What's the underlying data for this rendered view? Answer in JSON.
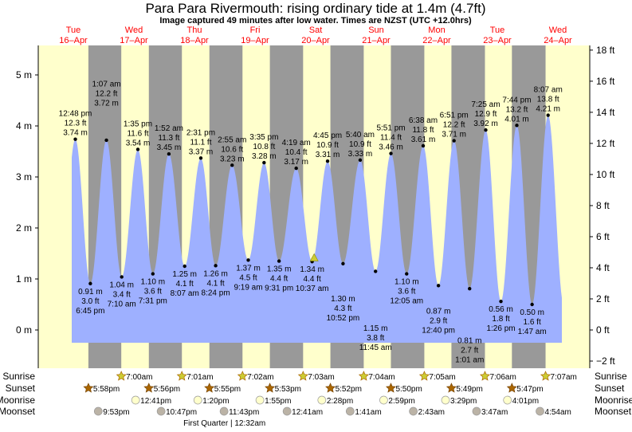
{
  "title": "Para Para Rivermouth: rising  ordinary tide at 1.4m (4.7ft)",
  "subtitle": "Image captured 49 minutes after low water. Times are NZST (UTC +12.0hrs)",
  "colors": {
    "tide": "#9eb0ff",
    "day": "#ffffcc",
    "night": "#999999",
    "day_label": "#ff0000",
    "sunrise": "#cccc33",
    "sunset": "#aa6600",
    "moonrise": "#ffffcc",
    "moonset": "#bbb3a6",
    "marker": "#cccc33"
  },
  "chart_data": {
    "type": "area",
    "title": "Para Para Rivermouth: rising  ordinary tide at 1.4m (4.7ft)",
    "x_unit": "hours since 16-Apr 00:00 NZST",
    "xlim": [
      -8,
      211
    ],
    "ylim_m": [
      -0.75,
      5.6
    ],
    "y_ticks_m": [
      "0 m",
      "1 m",
      "2 m",
      "3 m",
      "4 m",
      "5 m"
    ],
    "y_tick_values_m": [
      0,
      1,
      2,
      3,
      4,
      5
    ],
    "y_ticks_ft": [
      "−2 ft",
      "0 ft",
      "2 ft",
      "4 ft",
      "6 ft",
      "8 ft",
      "10 ft",
      "12 ft",
      "14 ft",
      "16 ft",
      "18 ft"
    ],
    "y_tick_values_ft": [
      -2,
      0,
      2,
      4,
      6,
      8,
      10,
      12,
      14,
      16,
      18
    ],
    "days": [
      {
        "dow": "Tue",
        "date": "16–Apr",
        "t": 12
      },
      {
        "dow": "Wed",
        "date": "17–Apr",
        "t": 36
      },
      {
        "dow": "Thu",
        "date": "18–Apr",
        "t": 60
      },
      {
        "dow": "Fri",
        "date": "19–Apr",
        "t": 84
      },
      {
        "dow": "Sat",
        "date": "20–Apr",
        "t": 108
      },
      {
        "dow": "Sun",
        "date": "21–Apr",
        "t": 132
      },
      {
        "dow": "Mon",
        "date": "22–Apr",
        "t": 156
      },
      {
        "dow": "Tue",
        "date": "23–Apr",
        "t": 180
      },
      {
        "dow": "Wed",
        "date": "24–Apr",
        "t": 204
      }
    ],
    "tides": [
      {
        "type": "high",
        "t": 12.8,
        "time": "12:48 pm",
        "ft": "12.3 ft",
        "m": 3.74,
        "m_label": "3.74 m"
      },
      {
        "type": "low",
        "t": 18.75,
        "time": "6:45 pm",
        "ft": "3.0 ft",
        "m": 0.91,
        "m_label": "0.91 m"
      },
      {
        "type": "high",
        "t": 25.12,
        "time": "1:07 am",
        "ft": "12.2 ft",
        "m": 3.72,
        "m_label": "3.72 m"
      },
      {
        "type": "low",
        "t": 31.17,
        "time": "7:10 am",
        "ft": "3.4 ft",
        "m": 1.04,
        "m_label": "1.04 m"
      },
      {
        "type": "high",
        "t": 37.58,
        "time": "1:35 pm",
        "ft": "11.6 ft",
        "m": 3.54,
        "m_label": "3.54 m"
      },
      {
        "type": "low",
        "t": 43.52,
        "time": "7:31 pm",
        "ft": "3.6 ft",
        "m": 1.1,
        "m_label": "1.10 m"
      },
      {
        "type": "high",
        "t": 49.87,
        "time": "1:52 am",
        "ft": "11.3 ft",
        "m": 3.45,
        "m_label": "3.45 m"
      },
      {
        "type": "low",
        "t": 56.12,
        "time": "8:07 am",
        "ft": "4.1 ft",
        "m": 1.25,
        "m_label": "1.25 m"
      },
      {
        "type": "high",
        "t": 62.52,
        "time": "2:31 pm",
        "ft": "11.1 ft",
        "m": 3.37,
        "m_label": "3.37 m"
      },
      {
        "type": "low",
        "t": 68.4,
        "time": "8:24 pm",
        "ft": "4.1 ft",
        "m": 1.26,
        "m_label": "1.26 m"
      },
      {
        "type": "high",
        "t": 74.92,
        "time": "2:55 am",
        "ft": "10.6 ft",
        "m": 3.23,
        "m_label": "3.23 m"
      },
      {
        "type": "low",
        "t": 81.32,
        "time": "9:19 am",
        "ft": "4.5 ft",
        "m": 1.37,
        "m_label": "1.37 m"
      },
      {
        "type": "high",
        "t": 87.58,
        "time": "3:35 pm",
        "ft": "10.8 ft",
        "m": 3.28,
        "m_label": "3.28 m"
      },
      {
        "type": "low",
        "t": 93.52,
        "time": "9:31 pm",
        "ft": "4.4 ft",
        "m": 1.35,
        "m_label": "1.35 m"
      },
      {
        "type": "high",
        "t": 100.32,
        "time": "4:19 am",
        "ft": "10.4 ft",
        "m": 3.17,
        "m_label": "3.17 m"
      },
      {
        "type": "low",
        "t": 106.62,
        "time": "10:37 am",
        "ft": "4.4 ft",
        "m": 1.34,
        "m_label": "1.34 m"
      },
      {
        "type": "high",
        "t": 112.75,
        "time": "4:45 pm",
        "ft": "10.9 ft",
        "m": 3.31,
        "m_label": "3.31 m"
      },
      {
        "type": "low",
        "t": 118.87,
        "time": "10:52 pm",
        "ft": "4.3 ft",
        "m": 1.3,
        "m_label": "1.30 m"
      },
      {
        "type": "high",
        "t": 125.67,
        "time": "5:40 am",
        "ft": "10.9 ft",
        "m": 3.33,
        "m_label": "3.33 m"
      },
      {
        "type": "low",
        "t": 131.75,
        "time": "11:45 am",
        "ft": "3.8 ft",
        "m": 1.15,
        "m_label": "1.15 m"
      },
      {
        "type": "high",
        "t": 137.85,
        "time": "5:51 pm",
        "ft": "11.4 ft",
        "m": 3.46,
        "m_label": "3.46 m"
      },
      {
        "type": "low",
        "t": 144.08,
        "time": "12:05 am",
        "ft": "3.6 ft",
        "m": 1.1,
        "m_label": "1.10 m"
      },
      {
        "type": "high",
        "t": 150.63,
        "time": "6:38 am",
        "ft": "11.8 ft",
        "m": 3.61,
        "m_label": "3.61 m"
      },
      {
        "type": "low",
        "t": 156.67,
        "time": "12:40 pm",
        "ft": "2.9 ft",
        "m": 0.87,
        "m_label": "0.87 m"
      },
      {
        "type": "high",
        "t": 162.85,
        "time": "6:51 pm",
        "ft": "12.2 ft",
        "m": 3.71,
        "m_label": "3.71 m"
      },
      {
        "type": "low",
        "t": 169.02,
        "time": "1:01 am",
        "ft": "2.7 ft",
        "m": 0.81,
        "m_label": "0.81 m"
      },
      {
        "type": "high",
        "t": 175.42,
        "time": "7:25 am",
        "ft": "12.9 ft",
        "m": 3.92,
        "m_label": "3.92 m"
      },
      {
        "type": "low",
        "t": 181.43,
        "time": "1:26 pm",
        "ft": "1.8 ft",
        "m": 0.56,
        "m_label": "0.56 m"
      },
      {
        "type": "high",
        "t": 187.73,
        "time": "7:44 pm",
        "ft": "13.2 ft",
        "m": 4.01,
        "m_label": "4.01 m"
      },
      {
        "type": "low",
        "t": 193.78,
        "time": "1:47 am",
        "ft": "1.6 ft",
        "m": 0.5,
        "m_label": "0.50 m"
      },
      {
        "type": "high",
        "t": 200.12,
        "time": "8:07 am",
        "ft": "13.8 ft",
        "m": 4.21,
        "m_label": "4.21 m"
      }
    ],
    "current": {
      "t": 107.43,
      "m": 1.4
    },
    "row_labels": {
      "sunrise": "Sunrise",
      "sunset": "Sunset",
      "moonrise": "Moonrise",
      "moonset": "Moonset"
    },
    "sunrise": [
      {
        "t": 31.0,
        "label": "7:00am"
      },
      {
        "t": 55.02,
        "label": "7:01am"
      },
      {
        "t": 79.03,
        "label": "7:02am"
      },
      {
        "t": 103.05,
        "label": "7:03am"
      },
      {
        "t": 127.07,
        "label": "7:04am"
      },
      {
        "t": 151.08,
        "label": "7:05am"
      },
      {
        "t": 175.1,
        "label": "7:06am"
      },
      {
        "t": 199.12,
        "label": "7:07am"
      }
    ],
    "sunset": [
      {
        "t": 17.97,
        "label": "5:58pm"
      },
      {
        "t": 41.93,
        "label": "5:56pm"
      },
      {
        "t": 65.92,
        "label": "5:55pm"
      },
      {
        "t": 89.88,
        "label": "5:53pm"
      },
      {
        "t": 113.87,
        "label": "5:52pm"
      },
      {
        "t": 137.83,
        "label": "5:50pm"
      },
      {
        "t": 161.82,
        "label": "5:49pm"
      },
      {
        "t": 185.78,
        "label": "5:47pm"
      }
    ],
    "moonrise": [
      {
        "t": 36.68,
        "label": "12:41pm"
      },
      {
        "t": 61.33,
        "label": "1:20pm"
      },
      {
        "t": 85.92,
        "label": "1:55pm"
      },
      {
        "t": 110.47,
        "label": "2:28pm"
      },
      {
        "t": 134.98,
        "label": "2:59pm"
      },
      {
        "t": 159.48,
        "label": "3:29pm"
      },
      {
        "t": 184.02,
        "label": "4:01pm"
      }
    ],
    "moonset": [
      {
        "t": 21.88,
        "label": "9:53pm"
      },
      {
        "t": 46.78,
        "label": "10:47pm"
      },
      {
        "t": 71.72,
        "label": "11:43pm"
      },
      {
        "t": 96.68,
        "label": "12:41am"
      },
      {
        "t": 121.68,
        "label": "1:41am"
      },
      {
        "t": 146.72,
        "label": "2:43am"
      },
      {
        "t": 171.78,
        "label": "3:47am"
      },
      {
        "t": 196.9,
        "label": "4:54am"
      }
    ],
    "moon_phase": {
      "t": 72.53,
      "label": "First Quarter | 12:32am"
    }
  }
}
